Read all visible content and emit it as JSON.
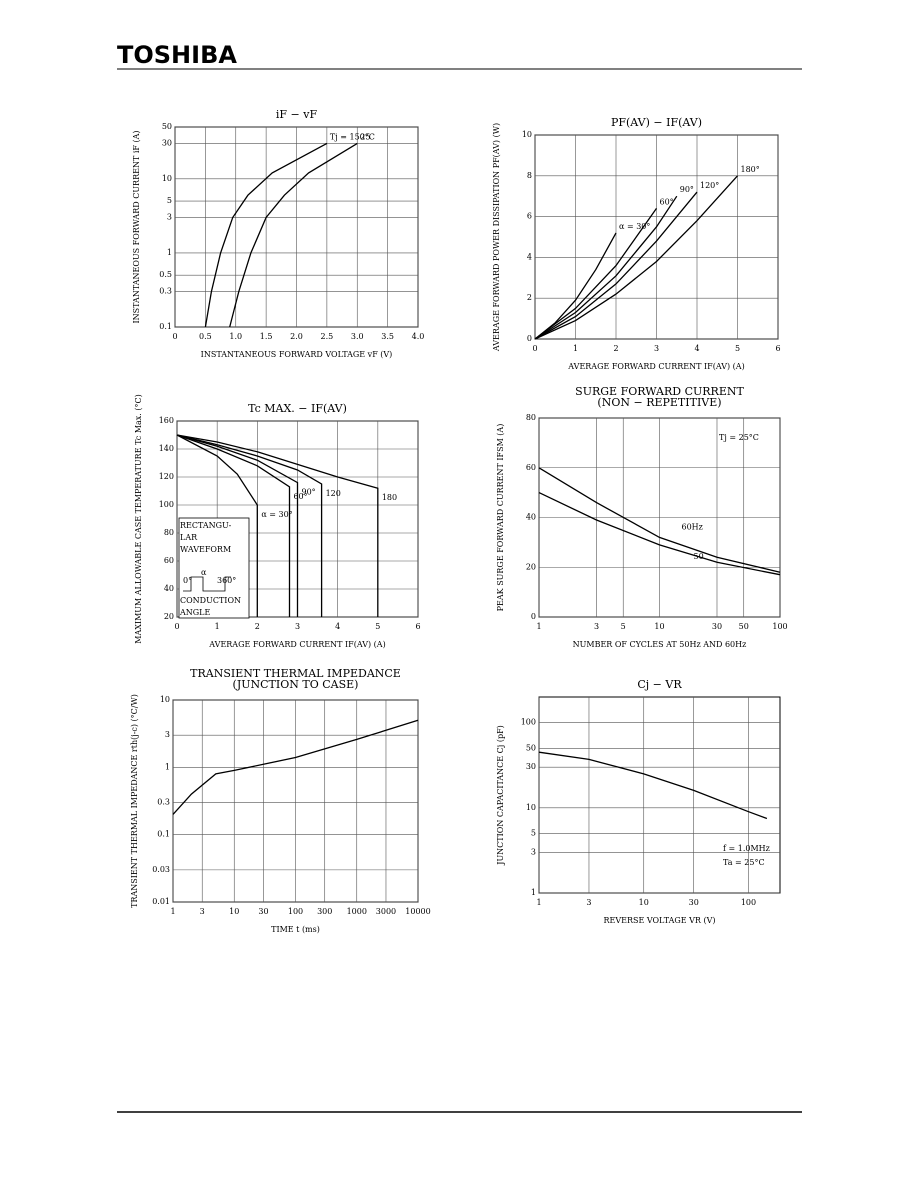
{
  "header": {
    "brand": "TOSHIBA"
  },
  "chart_data": [
    {
      "type": "line",
      "title": "iF − vF",
      "xlabel": "INSTANTANEOUS FORWARD VOLTAGE  vF  (V)",
      "ylabel": "INSTANTANEOUS FORWARD CURRENT  iF  (A)",
      "xlim": [
        0,
        4
      ],
      "ylim": [
        0.1,
        50
      ],
      "ylog": true,
      "grid": true,
      "color": "#000000",
      "xticks": [
        0,
        0.5,
        {
          "value": 1,
          "label": "1.0"
        },
        1.5,
        {
          "value": 2,
          "label": "2.0"
        },
        2.5,
        {
          "value": 3,
          "label": "3.0"
        },
        3.5,
        {
          "value": 4,
          "label": "4.0"
        }
      ],
      "yticks": [
        0.1,
        0.3,
        0.5,
        1,
        3,
        5,
        10,
        30,
        50
      ],
      "series": [
        {
          "name": "Tj = 150°C",
          "x": [
            0.5,
            0.6,
            0.75,
            0.95,
            1.2,
            1.6,
            2.5
          ],
          "values": [
            0.1,
            0.3,
            1,
            3,
            6,
            12,
            30
          ]
        },
        {
          "name": "25",
          "x": [
            0.9,
            1.05,
            1.25,
            1.5,
            1.8,
            2.2,
            3.0
          ],
          "values": [
            0.1,
            0.3,
            1,
            3,
            6,
            12,
            30
          ]
        }
      ]
    },
    {
      "type": "line",
      "title": "PF(AV) − IF(AV)",
      "xlabel": "AVERAGE FORWARD CURRENT  IF(AV)  (A)",
      "ylabel": "AVERAGE FORWARD POWER DISSIPATION  PF(AV)  (W)",
      "xlim": [
        0,
        6
      ],
      "ylim": [
        0,
        10
      ],
      "grid": true,
      "color": "#000000",
      "xticks": [
        0,
        1,
        2,
        3,
        4,
        5,
        6
      ],
      "yticks": [
        0,
        2,
        4,
        6,
        8,
        10
      ],
      "series": [
        {
          "name": "α = 30°",
          "x": [
            0,
            0.5,
            1,
            1.5,
            2
          ],
          "values": [
            0,
            0.8,
            1.9,
            3.4,
            5.2
          ]
        },
        {
          "name": "60°",
          "x": [
            0,
            1,
            2,
            3
          ],
          "values": [
            0,
            1.5,
            3.6,
            6.4
          ]
        },
        {
          "name": "90°",
          "x": [
            0,
            1,
            2,
            3,
            3.5
          ],
          "values": [
            0,
            1.3,
            3.1,
            5.5,
            7
          ]
        },
        {
          "name": "120°",
          "x": [
            0,
            1,
            2,
            3,
            4
          ],
          "values": [
            0,
            1.1,
            2.7,
            4.8,
            7.2
          ]
        },
        {
          "name": "180°",
          "x": [
            0,
            1,
            2,
            3,
            4,
            5
          ],
          "values": [
            0,
            0.9,
            2.2,
            3.8,
            5.8,
            8
          ]
        }
      ]
    },
    {
      "type": "line",
      "title": "Tc MAX. − IF(AV)",
      "xlabel": "AVERAGE FORWARD CURRENT  IF(AV)  (A)",
      "ylabel": "MAXIMUM ALLOWABLE CASE TEMPERATURE  Tc  Max. (°C)",
      "xlim": [
        0,
        6
      ],
      "ylim": [
        20,
        160
      ],
      "grid": true,
      "color": "#000000",
      "xticks": [
        0,
        1,
        2,
        3,
        4,
        5,
        6
      ],
      "yticks": [
        20,
        40,
        60,
        80,
        100,
        120,
        140,
        160
      ],
      "annotations": [
        "RECTANGU-",
        "LAR",
        "WAVEFORM",
        "0°",
        "α",
        "360°",
        "CONDUCTION",
        "ANGLE"
      ],
      "series": [
        {
          "name": "α = 30°",
          "x": [
            0,
            1,
            1.5,
            2,
            2
          ],
          "values": [
            150,
            135,
            122,
            100,
            20
          ]
        },
        {
          "name": "60°",
          "x": [
            0,
            1,
            2,
            2.8,
            2.8
          ],
          "values": [
            150,
            140,
            128,
            113,
            20
          ]
        },
        {
          "name": "90°",
          "x": [
            0,
            1,
            2,
            3,
            3
          ],
          "values": [
            150,
            142,
            132,
            116,
            20
          ]
        },
        {
          "name": "120",
          "x": [
            0,
            1,
            2,
            3,
            3.6,
            3.6
          ],
          "values": [
            150,
            143,
            135,
            125,
            115,
            20
          ]
        },
        {
          "name": "180",
          "x": [
            0,
            1,
            2,
            3,
            4,
            5,
            5
          ],
          "values": [
            150,
            145,
            138,
            129,
            120,
            112,
            20
          ]
        }
      ]
    },
    {
      "type": "line",
      "title": "SURGE FORWARD CURRENT",
      "subtitle": "(NON − REPETITIVE)",
      "xlabel": "NUMBER OF CYCLES AT 50Hz AND 60Hz",
      "ylabel": "PEAK SURGE FORWARD CURRENT  IFSM  (A)",
      "xlim": [
        1,
        100
      ],
      "xlog": true,
      "ylim": [
        0,
        80
      ],
      "grid": true,
      "color": "#000000",
      "xticks": [
        1,
        3,
        5,
        10,
        30,
        50,
        100
      ],
      "yticks": [
        0,
        20,
        40,
        60,
        80
      ],
      "annotations": [
        "Tj = 25°C"
      ],
      "series": [
        {
          "name": "60Hz",
          "x": [
            1,
            3,
            10,
            30,
            100
          ],
          "values": [
            60,
            46,
            32,
            24,
            18
          ]
        },
        {
          "name": "50",
          "x": [
            1,
            3,
            10,
            30,
            100
          ],
          "values": [
            50,
            39,
            29,
            22,
            17
          ]
        }
      ]
    },
    {
      "type": "line",
      "title": "TRANSIENT THERMAL IMPEDANCE",
      "subtitle": "(JUNCTION TO CASE)",
      "xlabel": "TIME  t  (ms)",
      "ylabel": "TRANSIENT THERMAL IMPEDANCE  rth(j-c)  (°C/W)",
      "xlim": [
        1,
        10000
      ],
      "xlog": true,
      "ylim": [
        0.01,
        10
      ],
      "ylog": true,
      "grid": true,
      "color": "#000000",
      "xticks": [
        1,
        3,
        10,
        30,
        100,
        300,
        1000,
        3000,
        10000
      ],
      "yticks": [
        0.01,
        0.03,
        0.1,
        0.3,
        1,
        3,
        10
      ],
      "series": [
        {
          "x": [
            1,
            2,
            5,
            10,
            100,
            1000,
            10000
          ],
          "values": [
            0.2,
            0.4,
            0.8,
            0.9,
            1.4,
            2.6,
            5
          ]
        }
      ]
    },
    {
      "type": "line",
      "title": "Cj − VR",
      "xlabel": "REVERSE VOLTAGE  VR  (V)",
      "ylabel": "JUNCTION CAPACITANCE  Cj  (pF)",
      "xlim": [
        1,
        200
      ],
      "xlog": true,
      "ylim": [
        1,
        200
      ],
      "ylog": true,
      "grid": true,
      "color": "#000000",
      "xticks": [
        1,
        3,
        10,
        30,
        100
      ],
      "yticks": [
        1,
        3,
        5,
        10,
        30,
        50,
        100
      ],
      "annotations": [
        "f = 1.0MHz",
        "Ta = 25°C"
      ],
      "series": [
        {
          "x": [
            1,
            3,
            10,
            30,
            100,
            150
          ],
          "values": [
            45,
            37,
            25,
            16,
            9,
            7.5
          ]
        }
      ]
    }
  ]
}
